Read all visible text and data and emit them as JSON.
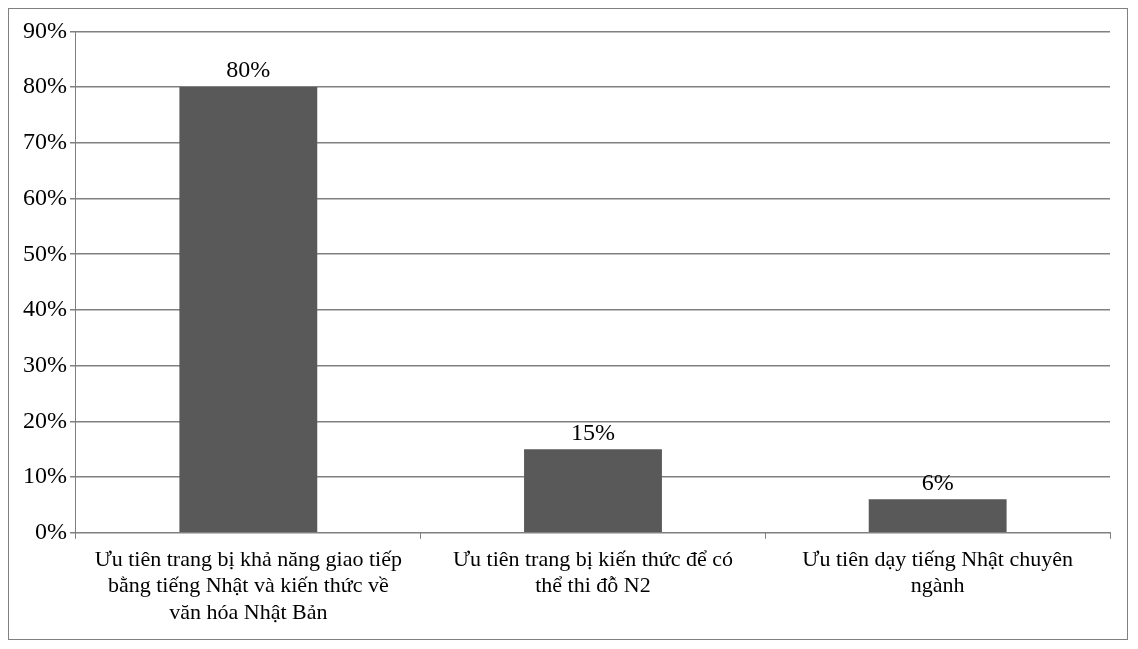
{
  "chart_data": {
    "type": "bar",
    "categories": [
      "Ưu tiên trang bị khả năng giao tiếp bằng tiếng Nhật và kiến thức về văn hóa Nhật Bản",
      "Ưu tiên trang bị kiến thức để có thể thi đỗ N2",
      "Ưu tiên dạy tiếng Nhật chuyên ngành"
    ],
    "values": [
      80,
      15,
      6
    ],
    "value_labels": [
      "80%",
      "15%",
      "6%"
    ],
    "color": "#595959",
    "ylim": [
      0,
      90
    ],
    "yticks": [
      {
        "value": 0,
        "label": "0%"
      },
      {
        "value": 10,
        "label": "10%"
      },
      {
        "value": 20,
        "label": "20%"
      },
      {
        "value": 30,
        "label": "30%"
      },
      {
        "value": 40,
        "label": "40%"
      },
      {
        "value": 50,
        "label": "50%"
      },
      {
        "value": 60,
        "label": "60%"
      },
      {
        "value": 70,
        "label": "70%"
      },
      {
        "value": 80,
        "label": "80%"
      },
      {
        "value": 90,
        "label": "90%"
      }
    ],
    "grid": "y",
    "legend": false
  }
}
